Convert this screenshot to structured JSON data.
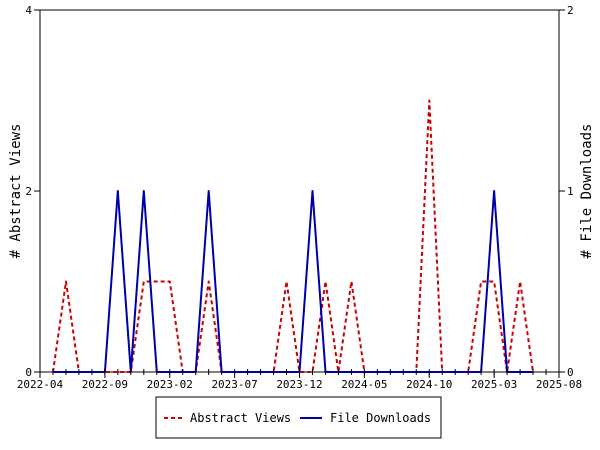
{
  "chart_data": {
    "type": "line",
    "x_tick_labels": [
      "2022-04",
      "2022-09",
      "2023-02",
      "2023-07",
      "2023-12",
      "2024-05",
      "2024-10",
      "2025-03",
      "2025-08"
    ],
    "x_range": [
      "2022-04",
      "2025-08"
    ],
    "y_left": {
      "label": "# Abstract Views",
      "range": [
        0,
        4
      ],
      "ticks": [
        "0",
        "2",
        "4"
      ]
    },
    "y_right": {
      "label": "# File Downloads",
      "range": [
        0,
        2
      ],
      "ticks": [
        "0",
        "1",
        "2"
      ]
    },
    "grid": false,
    "legend_position": "bottom",
    "series": [
      {
        "name": "Abstract Views",
        "axis": "left",
        "color": "#cc0000",
        "style": "dashed",
        "points": [
          [
            "2022-05",
            0
          ],
          [
            "2022-06",
            1
          ],
          [
            "2022-07",
            0
          ],
          [
            "2022-08",
            0
          ],
          [
            "2022-09",
            0
          ],
          [
            "2022-10",
            0
          ],
          [
            "2022-11",
            0
          ],
          [
            "2022-12",
            1
          ],
          [
            "2023-01",
            1
          ],
          [
            "2023-02",
            1
          ],
          [
            "2023-03",
            0
          ],
          [
            "2023-04",
            0
          ],
          [
            "2023-05",
            1
          ],
          [
            "2023-06",
            0
          ],
          [
            "2023-07",
            0
          ],
          [
            "2023-08",
            0
          ],
          [
            "2023-09",
            0
          ],
          [
            "2023-10",
            0
          ],
          [
            "2023-11",
            1
          ],
          [
            "2023-12",
            0
          ],
          [
            "2024-01",
            0
          ],
          [
            "2024-02",
            1
          ],
          [
            "2024-03",
            0
          ],
          [
            "2024-04",
            1
          ],
          [
            "2024-05",
            0
          ],
          [
            "2024-06",
            0
          ],
          [
            "2024-07",
            0
          ],
          [
            "2024-08",
            0
          ],
          [
            "2024-09",
            0
          ],
          [
            "2024-10",
            3
          ],
          [
            "2024-11",
            0
          ],
          [
            "2024-12",
            0
          ],
          [
            "2025-01",
            0
          ],
          [
            "2025-02",
            1
          ],
          [
            "2025-03",
            1
          ],
          [
            "2025-04",
            0
          ],
          [
            "2025-05",
            1
          ],
          [
            "2025-06",
            0
          ]
        ]
      },
      {
        "name": "File Downloads",
        "axis": "right",
        "color": "#0000aa",
        "style": "solid",
        "points": [
          [
            "2022-05",
            0
          ],
          [
            "2022-06",
            0
          ],
          [
            "2022-07",
            0
          ],
          [
            "2022-08",
            0
          ],
          [
            "2022-09",
            0
          ],
          [
            "2022-10",
            1
          ],
          [
            "2022-11",
            0
          ],
          [
            "2022-12",
            1
          ],
          [
            "2023-01",
            0
          ],
          [
            "2023-02",
            0
          ],
          [
            "2023-03",
            0
          ],
          [
            "2023-04",
            0
          ],
          [
            "2023-05",
            1
          ],
          [
            "2023-06",
            0
          ],
          [
            "2023-07",
            0
          ],
          [
            "2023-08",
            0
          ],
          [
            "2023-09",
            0
          ],
          [
            "2023-10",
            0
          ],
          [
            "2023-11",
            0
          ],
          [
            "2023-12",
            0
          ],
          [
            "2024-01",
            1
          ],
          [
            "2024-02",
            0
          ],
          [
            "2024-03",
            0
          ],
          [
            "2024-04",
            0
          ],
          [
            "2024-05",
            0
          ],
          [
            "2024-06",
            0
          ],
          [
            "2024-07",
            0
          ],
          [
            "2024-08",
            0
          ],
          [
            "2024-09",
            0
          ],
          [
            "2024-10",
            0
          ],
          [
            "2024-11",
            0
          ],
          [
            "2024-12",
            0
          ],
          [
            "2025-01",
            0
          ],
          [
            "2025-02",
            0
          ],
          [
            "2025-03",
            1
          ],
          [
            "2025-04",
            0
          ],
          [
            "2025-05",
            0
          ],
          [
            "2025-06",
            0
          ]
        ]
      }
    ]
  }
}
